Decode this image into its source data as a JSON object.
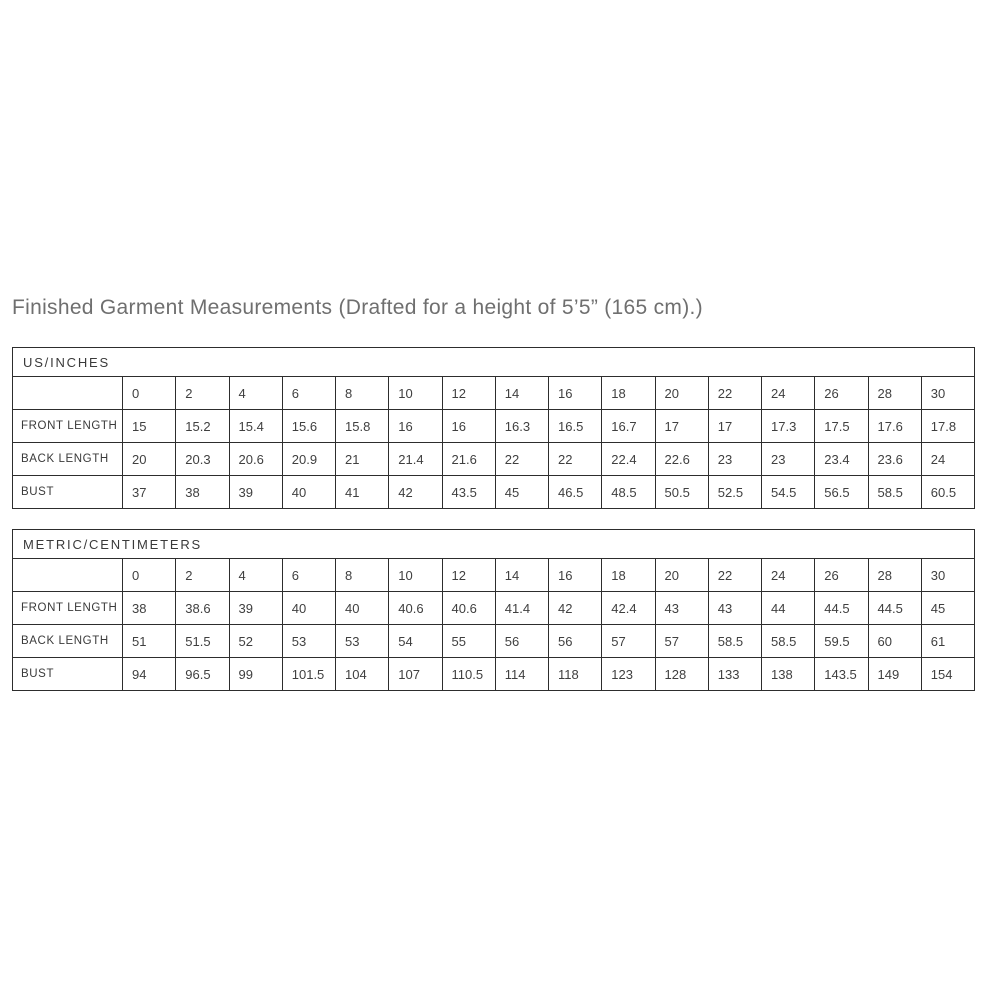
{
  "page": {
    "title": "Finished Garment Measurements (Drafted for a height of 5’5” (165 cm).)"
  },
  "colors": {
    "text": "#3f3f3f",
    "title_text": "#6f6f6f",
    "border": "#2d2d2d",
    "background": "#ffffff"
  },
  "tables": [
    {
      "name": "US/INCHES",
      "sizes": [
        "0",
        "2",
        "4",
        "6",
        "8",
        "10",
        "12",
        "14",
        "16",
        "18",
        "20",
        "22",
        "24",
        "26",
        "28",
        "30"
      ],
      "rows": [
        {
          "label": "FRONT LENGTH",
          "values": [
            "15",
            "15.2",
            "15.4",
            "15.6",
            "15.8",
            "16",
            "16",
            "16.3",
            "16.5",
            "16.7",
            "17",
            "17",
            "17.3",
            "17.5",
            "17.6",
            "17.8"
          ]
        },
        {
          "label": "BACK LENGTH",
          "values": [
            "20",
            "20.3",
            "20.6",
            "20.9",
            "21",
            "21.4",
            "21.6",
            "22",
            "22",
            "22.4",
            "22.6",
            "23",
            "23",
            "23.4",
            "23.6",
            "24"
          ]
        },
        {
          "label": "BUST",
          "values": [
            "37",
            "38",
            "39",
            "40",
            "41",
            "42",
            "43.5",
            "45",
            "46.5",
            "48.5",
            "50.5",
            "52.5",
            "54.5",
            "56.5",
            "58.5",
            "60.5"
          ]
        }
      ]
    },
    {
      "name": "METRIC/CENTIMETERS",
      "sizes": [
        "0",
        "2",
        "4",
        "6",
        "8",
        "10",
        "12",
        "14",
        "16",
        "18",
        "20",
        "22",
        "24",
        "26",
        "28",
        "30"
      ],
      "rows": [
        {
          "label": "FRONT LENGTH",
          "values": [
            "38",
            "38.6",
            "39",
            "40",
            "40",
            "40.6",
            "40.6",
            "41.4",
            "42",
            "42.4",
            "43",
            "43",
            "44",
            "44.5",
            "44.5",
            "45"
          ]
        },
        {
          "label": "BACK LENGTH",
          "values": [
            "51",
            "51.5",
            "52",
            "53",
            "53",
            "54",
            "55",
            "56",
            "56",
            "57",
            "57",
            "58.5",
            "58.5",
            "59.5",
            "60",
            "61"
          ]
        },
        {
          "label": "BUST",
          "values": [
            "94",
            "96.5",
            "99",
            "101.5",
            "104",
            "107",
            "110.5",
            "114",
            "118",
            "123",
            "128",
            "133",
            "138",
            "143.5",
            "149",
            "154"
          ]
        }
      ]
    }
  ]
}
